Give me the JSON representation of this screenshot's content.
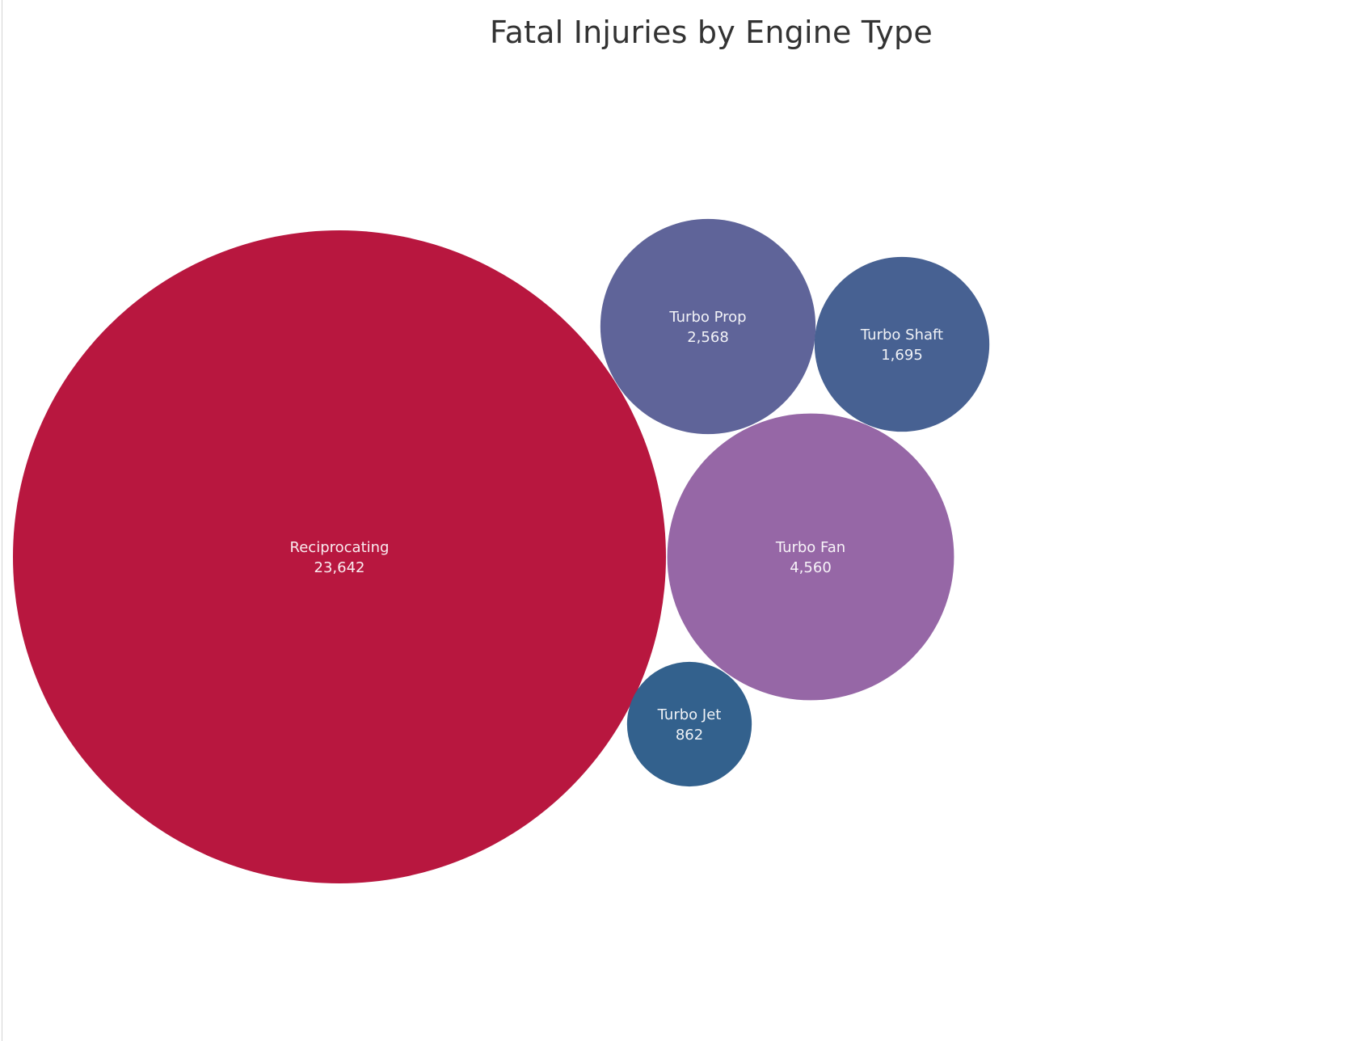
{
  "chart_data": {
    "type": "bubble",
    "title": "Fatal Injuries by Engine Type",
    "points": [
      {
        "label": "Reciprocating",
        "value": 23642,
        "value_label": "23,642",
        "color": "#b8173f"
      },
      {
        "label": "Turbo Fan",
        "value": 4560,
        "value_label": "4,560",
        "color": "#9667a6"
      },
      {
        "label": "Turbo Prop",
        "value": 2568,
        "value_label": "2,568",
        "color": "#5f6499"
      },
      {
        "label": "Turbo Shaft",
        "value": 1695,
        "value_label": "1,695",
        "color": "#476192"
      },
      {
        "label": "Turbo Jet",
        "value": 862,
        "value_label": "862",
        "color": "#33618d"
      }
    ]
  }
}
